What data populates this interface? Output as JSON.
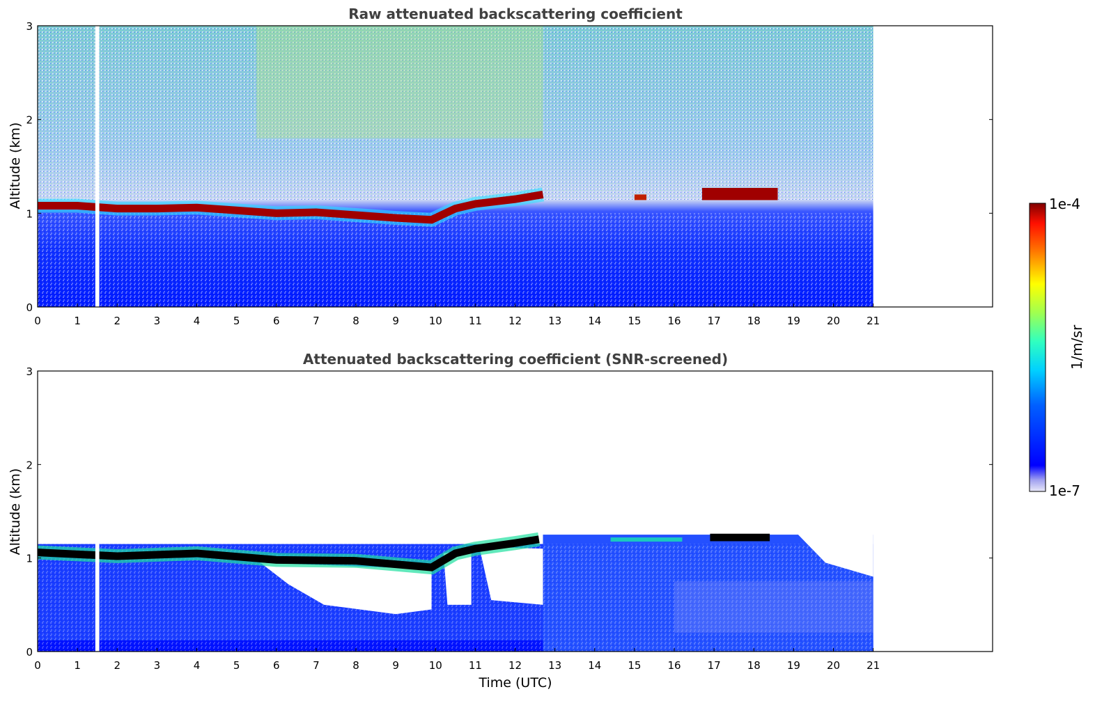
{
  "figure": {
    "colorbar": {
      "label": "1/m/sr",
      "max_label": "1e-4",
      "min_label": "1e-7",
      "colormap": "jet",
      "scale": "log",
      "range": [
        1e-07,
        0.0001
      ]
    }
  },
  "chart_data": [
    {
      "type": "heatmap",
      "title": "Raw attenuated backscattering coefficient",
      "xlabel": "",
      "ylabel": "Altitude (km)",
      "xlim": [
        0,
        24
      ],
      "ylim": [
        0,
        3
      ],
      "x_ticks": [
        "0",
        "1",
        "2",
        "3",
        "4",
        "5",
        "6",
        "7",
        "8",
        "9",
        "10",
        "11",
        "12",
        "13",
        "14",
        "15",
        "16",
        "17",
        "18",
        "19",
        "20",
        "21"
      ],
      "y_ticks": [
        "0",
        "1",
        "2",
        "3"
      ],
      "data_end_hour": 21,
      "gap_hours": [
        1.45,
        1.55
      ],
      "cloud_layer_km": [
        {
          "t": 0,
          "alt": 1.08
        },
        {
          "t": 1,
          "alt": 1.08
        },
        {
          "t": 2,
          "alt": 1.05
        },
        {
          "t": 3,
          "alt": 1.05
        },
        {
          "t": 4,
          "alt": 1.06
        },
        {
          "t": 5,
          "alt": 1.03
        },
        {
          "t": 6,
          "alt": 1.0
        },
        {
          "t": 7,
          "alt": 1.01
        },
        {
          "t": 8,
          "alt": 0.98
        },
        {
          "t": 9,
          "alt": 0.95
        },
        {
          "t": 9.9,
          "alt": 0.93
        },
        {
          "t": 10.5,
          "alt": 1.05
        },
        {
          "t": 11,
          "alt": 1.1
        },
        {
          "t": 12,
          "alt": 1.15
        },
        {
          "t": 12.7,
          "alt": 1.2
        }
      ]
    },
    {
      "type": "heatmap",
      "title": "Attenuated backscattering coefficient (SNR-screened)",
      "xlabel": "Time (UTC)",
      "ylabel": "Altitude (km)",
      "xlim": [
        0,
        24
      ],
      "ylim": [
        0,
        3
      ],
      "x_ticks": [
        "0",
        "1",
        "2",
        "3",
        "4",
        "5",
        "6",
        "7",
        "8",
        "9",
        "10",
        "11",
        "12",
        "13",
        "14",
        "15",
        "16",
        "17",
        "18",
        "19",
        "20",
        "21"
      ],
      "y_ticks": [
        "0",
        "1",
        "2",
        "3"
      ],
      "data_end_hour": 21,
      "gap_hours": [
        1.45,
        1.55
      ]
    }
  ]
}
